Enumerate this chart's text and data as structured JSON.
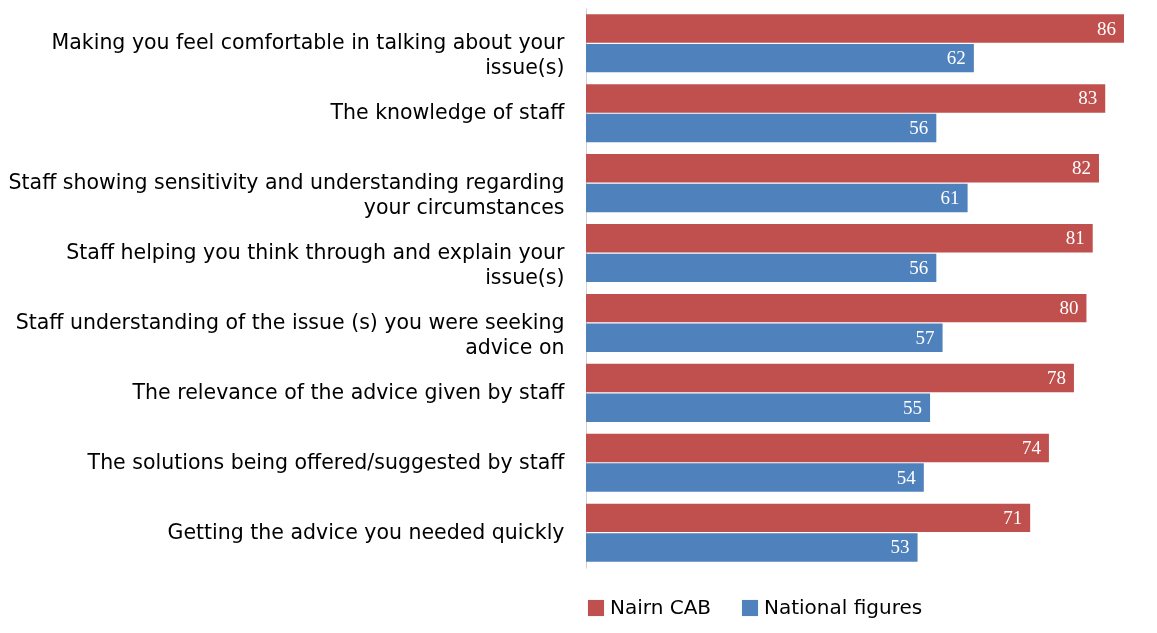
{
  "chart_data": {
    "type": "bar",
    "orientation": "horizontal",
    "data_labels": true,
    "legend": "bottom",
    "grid": false,
    "categories": [
      "Making you feel comfortable in talking about your issue(s)",
      "The knowledge of staff",
      "Staff showing sensitivity and understanding regarding your circumstances",
      "Staff helping you think through and explain your issue(s)",
      "Staff understanding of the issue (s) you were seeking advice on",
      "The relevance of the advice given by staff",
      "The solutions being offered/suggested by staff",
      "Getting the advice you needed quickly"
    ],
    "series": [
      {
        "name": "Nairn CAB",
        "color": "#c0504d",
        "values": [
          86,
          83,
          82,
          81,
          80,
          78,
          74,
          71
        ]
      },
      {
        "name": "National figures",
        "color": "#4f81bd",
        "values": [
          62,
          56,
          61,
          56,
          57,
          55,
          54,
          53
        ]
      }
    ]
  }
}
